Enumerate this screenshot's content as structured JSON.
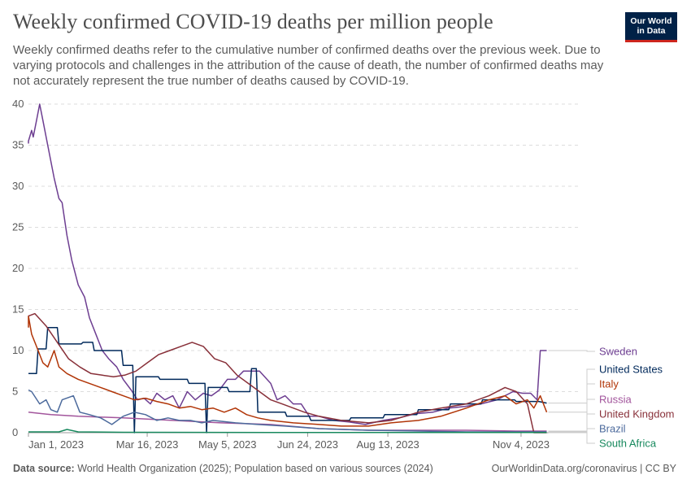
{
  "header": {
    "title": "Weekly confirmed COVID-19 deaths per million people",
    "subtitle": "Weekly confirmed deaths refer to the cumulative number of confirmed deaths over the previous week. Due to varying protocols and challenges in the attribution of the cause of death, the number of confirmed deaths may not accurately represent the true number of deaths caused by COVID-19."
  },
  "logo": {
    "line1": "Our World",
    "line2": "in Data",
    "bg": "#002147",
    "accent": "#ce261e"
  },
  "footer": {
    "source_label": "Data source:",
    "source_text": "World Health Organization (2025); Population based on various sources (2024)",
    "right": "OurWorldinData.org/coronavirus | CC BY"
  },
  "chart_data": {
    "type": "line",
    "x_type": "date",
    "xlim": [
      "2023-01-01",
      "2023-12-10"
    ],
    "ylim": [
      0,
      40
    ],
    "yticks": [
      0,
      5,
      10,
      15,
      20,
      25,
      30,
      35,
      40
    ],
    "xticks": [
      {
        "date": "2023-01-01",
        "label": "Jan 1, 2023"
      },
      {
        "date": "2023-03-16",
        "label": "Mar 16, 2023"
      },
      {
        "date": "2023-05-05",
        "label": "May 5, 2023"
      },
      {
        "date": "2023-06-24",
        "label": "Jun 24, 2023"
      },
      {
        "date": "2023-08-13",
        "label": "Aug 13, 2023"
      },
      {
        "date": "2023-11-04",
        "label": "Nov 4, 2023"
      }
    ],
    "grid": true,
    "legend": "right",
    "series": [
      {
        "name": "Sweden",
        "color": "#6d3e91",
        "points": [
          [
            "2022-12-28",
            35.2
          ],
          [
            "2023-01-01",
            35.5
          ],
          [
            "2023-01-03",
            36.8
          ],
          [
            "2023-01-04",
            36
          ],
          [
            "2023-01-06",
            38
          ],
          [
            "2023-01-08",
            40
          ],
          [
            "2023-01-10",
            38
          ],
          [
            "2023-01-13",
            35
          ],
          [
            "2023-01-17",
            31
          ],
          [
            "2023-01-20",
            28.5
          ],
          [
            "2023-01-22",
            28
          ],
          [
            "2023-01-25",
            24
          ],
          [
            "2023-01-28",
            21
          ],
          [
            "2023-02-01",
            18
          ],
          [
            "2023-02-05",
            16.5
          ],
          [
            "2023-02-08",
            14
          ],
          [
            "2023-02-12",
            12
          ],
          [
            "2023-02-16",
            10
          ],
          [
            "2023-02-20",
            9
          ],
          [
            "2023-02-25",
            8
          ],
          [
            "2023-03-01",
            6.5
          ],
          [
            "2023-03-06",
            5.2
          ],
          [
            "2023-03-10",
            4
          ],
          [
            "2023-03-14",
            4.2
          ],
          [
            "2023-03-18",
            3.5
          ],
          [
            "2023-03-22",
            4.8
          ],
          [
            "2023-03-27",
            4
          ],
          [
            "2023-04-01",
            4.5
          ],
          [
            "2023-04-05",
            3
          ],
          [
            "2023-04-10",
            5
          ],
          [
            "2023-04-15",
            4
          ],
          [
            "2023-04-20",
            4.8
          ],
          [
            "2023-04-25",
            4.5
          ],
          [
            "2023-04-30",
            5.2
          ],
          [
            "2023-05-05",
            6.5
          ],
          [
            "2023-05-10",
            6.5
          ],
          [
            "2023-05-15",
            7.5
          ],
          [
            "2023-05-25",
            7.5
          ],
          [
            "2023-06-01",
            6
          ],
          [
            "2023-06-05",
            4
          ],
          [
            "2023-06-10",
            4.5
          ],
          [
            "2023-06-15",
            3.5
          ],
          [
            "2023-06-20",
            3.5
          ],
          [
            "2023-06-25",
            2
          ],
          [
            "2023-07-01",
            2
          ],
          [
            "2023-07-10",
            1.5
          ],
          [
            "2023-07-20",
            1.3
          ],
          [
            "2023-07-30",
            1
          ],
          [
            "2023-08-10",
            1.5
          ],
          [
            "2023-08-20",
            1.8
          ],
          [
            "2023-08-30",
            2.3
          ],
          [
            "2023-09-10",
            2.5
          ],
          [
            "2023-09-20",
            3
          ],
          [
            "2023-09-30",
            3.2
          ],
          [
            "2023-10-10",
            3.5
          ],
          [
            "2023-10-20",
            4
          ],
          [
            "2023-10-30",
            5
          ],
          [
            "2023-11-05",
            4.8
          ],
          [
            "2023-11-10",
            4.8
          ],
          [
            "2023-11-14",
            4
          ],
          [
            "2023-11-16",
            10
          ],
          [
            "2023-11-20",
            10
          ]
        ]
      },
      {
        "name": "United States",
        "color": "#00295b",
        "points": [
          [
            "2022-12-28",
            7.2
          ],
          [
            "2023-01-06",
            7.2
          ],
          [
            "2023-01-07",
            10.2
          ],
          [
            "2023-01-12",
            10.2
          ],
          [
            "2023-01-13",
            12.8
          ],
          [
            "2023-01-19",
            12.8
          ],
          [
            "2023-01-20",
            10.8
          ],
          [
            "2023-02-03",
            10.8
          ],
          [
            "2023-02-04",
            11
          ],
          [
            "2023-02-10",
            11
          ],
          [
            "2023-02-11",
            10
          ],
          [
            "2023-02-28",
            10
          ],
          [
            "2023-03-01",
            8.2
          ],
          [
            "2023-03-07",
            8.2
          ],
          [
            "2023-03-08",
            0
          ],
          [
            "2023-03-09",
            6.8
          ],
          [
            "2023-03-23",
            6.8
          ],
          [
            "2023-03-24",
            6.5
          ],
          [
            "2023-04-10",
            6.5
          ],
          [
            "2023-04-11",
            6
          ],
          [
            "2023-04-21",
            6
          ],
          [
            "2023-04-22",
            0
          ],
          [
            "2023-04-23",
            5.5
          ],
          [
            "2023-05-05",
            5.5
          ],
          [
            "2023-05-06",
            5
          ],
          [
            "2023-05-19",
            5
          ],
          [
            "2023-05-20",
            7.8
          ],
          [
            "2023-05-23",
            7.8
          ],
          [
            "2023-05-24",
            2.5
          ],
          [
            "2023-06-10",
            2.5
          ],
          [
            "2023-06-11",
            2
          ],
          [
            "2023-06-25",
            2
          ],
          [
            "2023-06-26",
            1.5
          ],
          [
            "2023-07-20",
            1.5
          ],
          [
            "2023-07-21",
            1.8
          ],
          [
            "2023-08-10",
            1.8
          ],
          [
            "2023-08-11",
            2.2
          ],
          [
            "2023-08-31",
            2.2
          ],
          [
            "2023-09-01",
            2.8
          ],
          [
            "2023-09-20",
            2.8
          ],
          [
            "2023-09-21",
            3.5
          ],
          [
            "2023-10-10",
            3.5
          ],
          [
            "2023-10-11",
            4
          ],
          [
            "2023-10-31",
            4
          ],
          [
            "2023-11-01",
            3.8
          ],
          [
            "2023-11-15",
            3.8
          ],
          [
            "2023-11-20",
            3.6
          ]
        ]
      },
      {
        "name": "Italy",
        "color": "#b13507",
        "points": [
          [
            "2022-12-28",
            12.8
          ],
          [
            "2023-01-01",
            14.2
          ],
          [
            "2023-01-03",
            12
          ],
          [
            "2023-01-06",
            10.5
          ],
          [
            "2023-01-10",
            8.5
          ],
          [
            "2023-01-13",
            8
          ],
          [
            "2023-01-17",
            10
          ],
          [
            "2023-01-20",
            8
          ],
          [
            "2023-01-25",
            7.2
          ],
          [
            "2023-02-01",
            6.5
          ],
          [
            "2023-02-08",
            6
          ],
          [
            "2023-02-15",
            5.5
          ],
          [
            "2023-02-22",
            5
          ],
          [
            "2023-03-01",
            4.5
          ],
          [
            "2023-03-08",
            4
          ],
          [
            "2023-03-15",
            4.2
          ],
          [
            "2023-03-22",
            3.8
          ],
          [
            "2023-03-29",
            3.5
          ],
          [
            "2023-04-05",
            3
          ],
          [
            "2023-04-12",
            3.2
          ],
          [
            "2023-04-19",
            2.8
          ],
          [
            "2023-04-26",
            3
          ],
          [
            "2023-05-03",
            2.5
          ],
          [
            "2023-05-10",
            3
          ],
          [
            "2023-05-17",
            2.2
          ],
          [
            "2023-05-24",
            1.8
          ],
          [
            "2023-06-01",
            1.5
          ],
          [
            "2023-06-15",
            1.2
          ],
          [
            "2023-07-01",
            1
          ],
          [
            "2023-07-15",
            0.8
          ],
          [
            "2023-08-01",
            0.8
          ],
          [
            "2023-08-15",
            1.2
          ],
          [
            "2023-09-01",
            1.5
          ],
          [
            "2023-09-15",
            2
          ],
          [
            "2023-10-01",
            3
          ],
          [
            "2023-10-15",
            4
          ],
          [
            "2023-10-25",
            4.5
          ],
          [
            "2023-11-01",
            3.5
          ],
          [
            "2023-11-08",
            4
          ],
          [
            "2023-11-12",
            3
          ],
          [
            "2023-11-16",
            4.5
          ],
          [
            "2023-11-20",
            2.5
          ]
        ]
      },
      {
        "name": "Russia",
        "color": "#a2559c",
        "points": [
          [
            "2022-12-28",
            2.5
          ],
          [
            "2023-01-15",
            2.2
          ],
          [
            "2023-02-01",
            2
          ],
          [
            "2023-03-01",
            1.8
          ],
          [
            "2023-04-01",
            1.5
          ],
          [
            "2023-05-01",
            1.2
          ],
          [
            "2023-06-01",
            1
          ],
          [
            "2023-07-01",
            0.5
          ],
          [
            "2023-08-01",
            0.3
          ],
          [
            "2023-09-01",
            0.3
          ],
          [
            "2023-10-01",
            0.3
          ],
          [
            "2023-11-01",
            0.2
          ],
          [
            "2023-11-20",
            0.2
          ]
        ]
      },
      {
        "name": "United Kingdom",
        "color": "#883039",
        "points": [
          [
            "2022-12-28",
            14.2
          ],
          [
            "2023-01-05",
            14.5
          ],
          [
            "2023-01-12",
            13
          ],
          [
            "2023-01-19",
            11
          ],
          [
            "2023-01-26",
            9
          ],
          [
            "2023-02-02",
            8
          ],
          [
            "2023-02-09",
            7.2
          ],
          [
            "2023-02-16",
            7
          ],
          [
            "2023-02-23",
            6.8
          ],
          [
            "2023-03-02",
            7
          ],
          [
            "2023-03-09",
            7.5
          ],
          [
            "2023-03-16",
            8.5
          ],
          [
            "2023-03-23",
            9.5
          ],
          [
            "2023-03-30",
            10
          ],
          [
            "2023-04-06",
            10.5
          ],
          [
            "2023-04-13",
            11
          ],
          [
            "2023-04-20",
            10.5
          ],
          [
            "2023-04-27",
            9
          ],
          [
            "2023-05-04",
            8.5
          ],
          [
            "2023-05-11",
            7
          ],
          [
            "2023-05-18",
            6
          ],
          [
            "2023-05-25",
            5
          ],
          [
            "2023-06-01",
            4
          ],
          [
            "2023-06-08",
            3.5
          ],
          [
            "2023-06-15",
            3
          ],
          [
            "2023-06-22",
            2.5
          ],
          [
            "2023-07-01",
            2
          ],
          [
            "2023-07-15",
            1.5
          ],
          [
            "2023-08-01",
            1.2
          ],
          [
            "2023-08-15",
            1.5
          ],
          [
            "2023-09-01",
            2.5
          ],
          [
            "2023-09-15",
            3
          ],
          [
            "2023-10-01",
            3.5
          ],
          [
            "2023-10-15",
            4.5
          ],
          [
            "2023-10-25",
            5.5
          ],
          [
            "2023-11-01",
            5
          ],
          [
            "2023-11-08",
            3.5
          ],
          [
            "2023-11-12",
            0
          ],
          [
            "2023-11-20",
            0
          ]
        ]
      },
      {
        "name": "Brazil",
        "color": "#4c6a9c",
        "points": [
          [
            "2022-12-28",
            5.2
          ],
          [
            "2023-01-03",
            5
          ],
          [
            "2023-01-08",
            3.5
          ],
          [
            "2023-01-12",
            4
          ],
          [
            "2023-01-15",
            2.8
          ],
          [
            "2023-01-19",
            2.5
          ],
          [
            "2023-01-22",
            4
          ],
          [
            "2023-01-29",
            4.5
          ],
          [
            "2023-02-02",
            2.5
          ],
          [
            "2023-02-08",
            2.2
          ],
          [
            "2023-02-15",
            1.8
          ],
          [
            "2023-02-22",
            1
          ],
          [
            "2023-03-01",
            2
          ],
          [
            "2023-03-08",
            2.5
          ],
          [
            "2023-03-15",
            2.2
          ],
          [
            "2023-03-22",
            1.5
          ],
          [
            "2023-03-29",
            1.8
          ],
          [
            "2023-04-05",
            1.5
          ],
          [
            "2023-04-12",
            1.5
          ],
          [
            "2023-04-19",
            1.2
          ],
          [
            "2023-04-26",
            1.5
          ],
          [
            "2023-05-10",
            1.2
          ],
          [
            "2023-05-24",
            1
          ],
          [
            "2023-06-10",
            0.8
          ],
          [
            "2023-07-01",
            0.5
          ],
          [
            "2023-08-01",
            0.3
          ],
          [
            "2023-09-01",
            0.2
          ],
          [
            "2023-10-01",
            0.1
          ],
          [
            "2023-11-20",
            0.1
          ]
        ]
      },
      {
        "name": "South Africa",
        "color": "#18895e",
        "points": [
          [
            "2022-12-28",
            0.1
          ],
          [
            "2023-01-20",
            0.1
          ],
          [
            "2023-01-25",
            0.4
          ],
          [
            "2023-02-01",
            0.1
          ],
          [
            "2023-03-01",
            0.05
          ],
          [
            "2023-06-01",
            0.03
          ],
          [
            "2023-11-20",
            0.02
          ]
        ]
      }
    ]
  }
}
